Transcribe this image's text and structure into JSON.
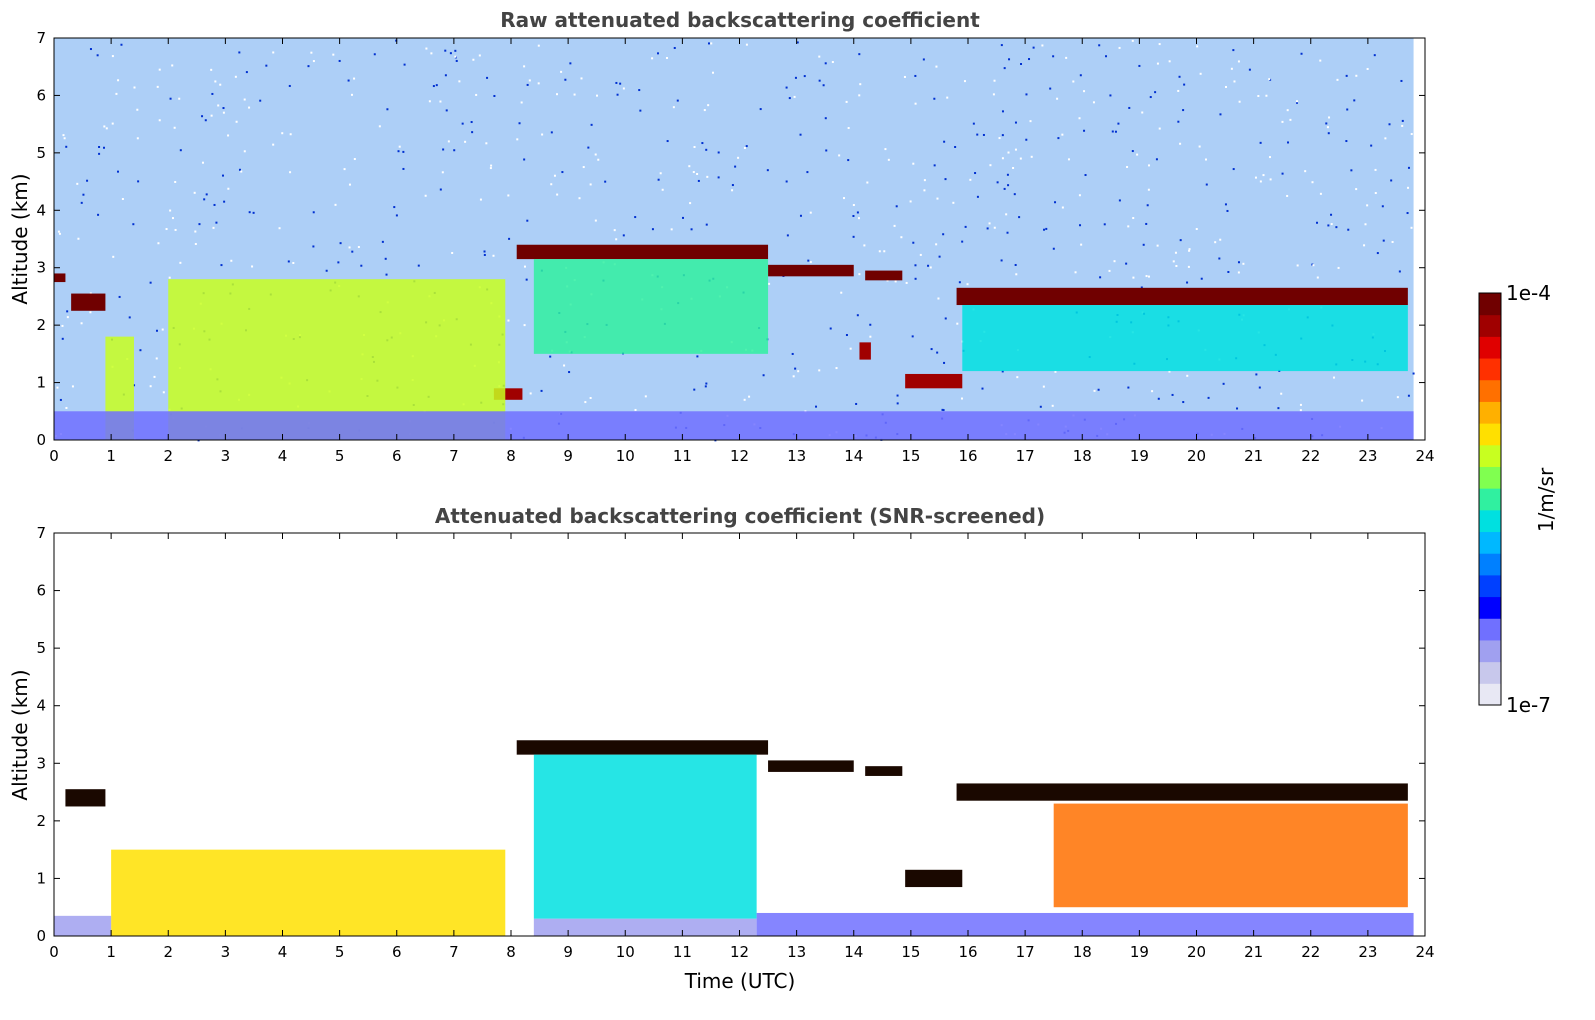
{
  "chart_data": [
    {
      "type": "heatmap",
      "title": "Raw attenuated backscattering coefficient",
      "xlabel": "",
      "ylabel": "Altitude (km)",
      "xlim": [
        0,
        24
      ],
      "ylim": [
        0,
        7
      ],
      "xticks": [
        "0",
        "1",
        "2",
        "3",
        "4",
        "5",
        "6",
        "7",
        "8",
        "9",
        "10",
        "11",
        "12",
        "13",
        "14",
        "15",
        "16",
        "17",
        "18",
        "19",
        "20",
        "21",
        "22",
        "23",
        "24"
      ],
      "yticks": [
        "0",
        "1",
        "2",
        "3",
        "4",
        "5",
        "6",
        "7"
      ],
      "noise_background": true,
      "features": [
        {
          "kind": "layer",
          "x0": 0.3,
          "x1": 0.9,
          "y0": 2.25,
          "y1": 2.55,
          "level": 1.0
        },
        {
          "kind": "layer",
          "x0": 0.0,
          "x1": 0.2,
          "y0": 2.75,
          "y1": 2.9,
          "level": 1.0
        },
        {
          "kind": "layer",
          "x0": 8.1,
          "x1": 12.5,
          "y0": 3.15,
          "y1": 3.4,
          "level": 1.0
        },
        {
          "kind": "layer",
          "x0": 12.5,
          "x1": 14.0,
          "y0": 2.85,
          "y1": 3.05,
          "level": 1.0
        },
        {
          "kind": "layer",
          "x0": 14.2,
          "x1": 14.85,
          "y0": 2.78,
          "y1": 2.95,
          "level": 1.0
        },
        {
          "kind": "layer",
          "x0": 15.8,
          "x1": 23.7,
          "y0": 2.35,
          "y1": 2.65,
          "level": 1.0
        },
        {
          "kind": "layer",
          "x0": 14.9,
          "x1": 15.9,
          "y0": 0.9,
          "y1": 1.15,
          "level": 0.95
        },
        {
          "kind": "layer",
          "x0": 7.7,
          "x1": 8.2,
          "y0": 0.7,
          "y1": 0.9,
          "level": 0.95
        },
        {
          "kind": "layer",
          "x0": 14.1,
          "x1": 14.3,
          "y0": 1.4,
          "y1": 1.7,
          "level": 0.95
        },
        {
          "kind": "region",
          "x0": 2.0,
          "x1": 7.9,
          "y0": 0.0,
          "y1": 2.8,
          "level": 0.62
        },
        {
          "kind": "region",
          "x0": 0.9,
          "x1": 1.4,
          "y0": 0.0,
          "y1": 1.8,
          "level": 0.6
        },
        {
          "kind": "region",
          "x0": 8.4,
          "x1": 12.5,
          "y0": 1.5,
          "y1": 3.15,
          "level": 0.5
        },
        {
          "kind": "region",
          "x0": 15.9,
          "x1": 23.7,
          "y0": 1.2,
          "y1": 2.35,
          "level": 0.45
        },
        {
          "kind": "region",
          "x0": 0.0,
          "x1": 23.8,
          "y0": 0.0,
          "y1": 0.5,
          "level": 0.15
        }
      ]
    },
    {
      "type": "heatmap",
      "title": "Attenuated backscattering coefficient (SNR-screened)",
      "xlabel": "Time (UTC)",
      "ylabel": "Altitude (km)",
      "xlim": [
        0,
        24
      ],
      "ylim": [
        0,
        7
      ],
      "xticks": [
        "0",
        "1",
        "2",
        "3",
        "4",
        "5",
        "6",
        "7",
        "8",
        "9",
        "10",
        "11",
        "12",
        "13",
        "14",
        "15",
        "16",
        "17",
        "18",
        "19",
        "20",
        "21",
        "22",
        "23",
        "24"
      ],
      "yticks": [
        "0",
        "1",
        "2",
        "3",
        "4",
        "5",
        "6",
        "7"
      ],
      "noise_background": false,
      "features": [
        {
          "kind": "layer",
          "x0": 0.2,
          "x1": 0.9,
          "y0": 2.25,
          "y1": 2.55,
          "level": 1.05
        },
        {
          "kind": "layer",
          "x0": 8.1,
          "x1": 12.5,
          "y0": 3.15,
          "y1": 3.4,
          "level": 1.05
        },
        {
          "kind": "layer",
          "x0": 12.5,
          "x1": 14.0,
          "y0": 2.85,
          "y1": 3.05,
          "level": 1.05
        },
        {
          "kind": "layer",
          "x0": 14.2,
          "x1": 14.85,
          "y0": 2.78,
          "y1": 2.95,
          "level": 1.05
        },
        {
          "kind": "layer",
          "x0": 15.8,
          "x1": 23.7,
          "y0": 2.35,
          "y1": 2.65,
          "level": 1.05
        },
        {
          "kind": "layer",
          "x0": 14.9,
          "x1": 15.9,
          "y0": 0.85,
          "y1": 1.15,
          "level": 1.05
        },
        {
          "kind": "region",
          "x0": 1.0,
          "x1": 7.9,
          "y0": 0.0,
          "y1": 1.5,
          "level": 0.65
        },
        {
          "kind": "region",
          "x0": 8.4,
          "x1": 12.3,
          "y0": 0.3,
          "y1": 3.15,
          "level": 0.45
        },
        {
          "kind": "region",
          "x0": 8.4,
          "x1": 12.3,
          "y0": 0.0,
          "y1": 0.3,
          "level": 0.12
        },
        {
          "kind": "region",
          "x0": 0.0,
          "x1": 1.0,
          "y0": 0.0,
          "y1": 0.35,
          "level": 0.12
        },
        {
          "kind": "region",
          "x0": 12.3,
          "x1": 23.8,
          "y0": 0.0,
          "y1": 0.4,
          "level": 0.15
        },
        {
          "kind": "region",
          "x0": 17.5,
          "x1": 23.7,
          "y0": 0.5,
          "y1": 2.3,
          "level": 0.78
        }
      ]
    }
  ],
  "colorbar": {
    "label": "1/m/sr",
    "max_label": "1e-4",
    "min_label": "1e-7",
    "colors": [
      "#e8e8f4",
      "#c8c8ec",
      "#a0a0f0",
      "#7070ff",
      "#0000ff",
      "#0040ff",
      "#0080ff",
      "#00b8ff",
      "#00e0e0",
      "#30f0a0",
      "#80ff50",
      "#c8ff20",
      "#ffe000",
      "#ffb000",
      "#ff7000",
      "#ff3000",
      "#e00000",
      "#a00000",
      "#700000"
    ]
  }
}
